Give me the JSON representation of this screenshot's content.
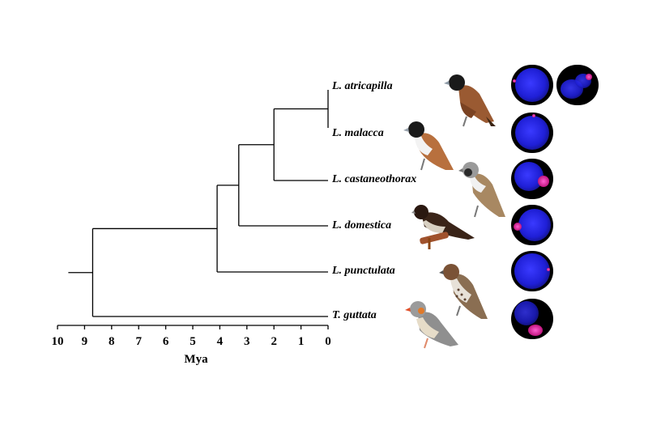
{
  "axis": {
    "title": "Mya",
    "ticks": [
      10,
      9,
      8,
      7,
      6,
      5,
      4,
      3,
      2,
      1,
      0
    ],
    "tick_labels": [
      "10",
      "9",
      "8",
      "7",
      "6",
      "5",
      "4",
      "3",
      "2",
      "1",
      "0"
    ]
  },
  "tree": {
    "root_age": 9.6,
    "taxa": [
      {
        "name": "L. atricapilla"
      },
      {
        "name": "L. malacca"
      },
      {
        "name": "L. castaneothorax"
      },
      {
        "name": "L. domestica"
      },
      {
        "name": "L. punctulata"
      },
      {
        "name": "T. guttata"
      }
    ],
    "nodes": [
      {
        "id": "n1",
        "age": 0.0,
        "children": [
          "L. atricapilla",
          "L. malacca"
        ]
      },
      {
        "id": "n2",
        "age": 2.0,
        "children": [
          "n1",
          "L. castaneothorax"
        ]
      },
      {
        "id": "n3",
        "age": 3.3,
        "children": [
          "n2",
          "L. domestica"
        ]
      },
      {
        "id": "n4",
        "age": 4.1,
        "children": [
          "n3",
          "L. punctulata"
        ]
      },
      {
        "id": "n5",
        "age": 8.7,
        "children": [
          "n4",
          "T. guttata"
        ]
      }
    ]
  },
  "colors": {
    "branch": "#000000",
    "nucleus": "#1f1fd6",
    "signal": "#e0209a",
    "panel_bg": "#000000"
  },
  "micrographs": [
    {
      "taxon": "L. atricapilla",
      "panels": 2
    },
    {
      "taxon": "L. malacca",
      "panels": 1
    },
    {
      "taxon": "L. castaneothorax",
      "panels": 1
    },
    {
      "taxon": "L. domestica",
      "panels": 1
    },
    {
      "taxon": "L. punctulata",
      "panels": 1
    },
    {
      "taxon": "T. guttata",
      "panels": 1
    }
  ],
  "bird_icons": [
    "bird-atricapilla-icon",
    "bird-malacca-icon",
    "bird-castaneothorax-icon",
    "bird-domestica-icon",
    "bird-punctulata-icon",
    "bird-guttata-icon"
  ]
}
